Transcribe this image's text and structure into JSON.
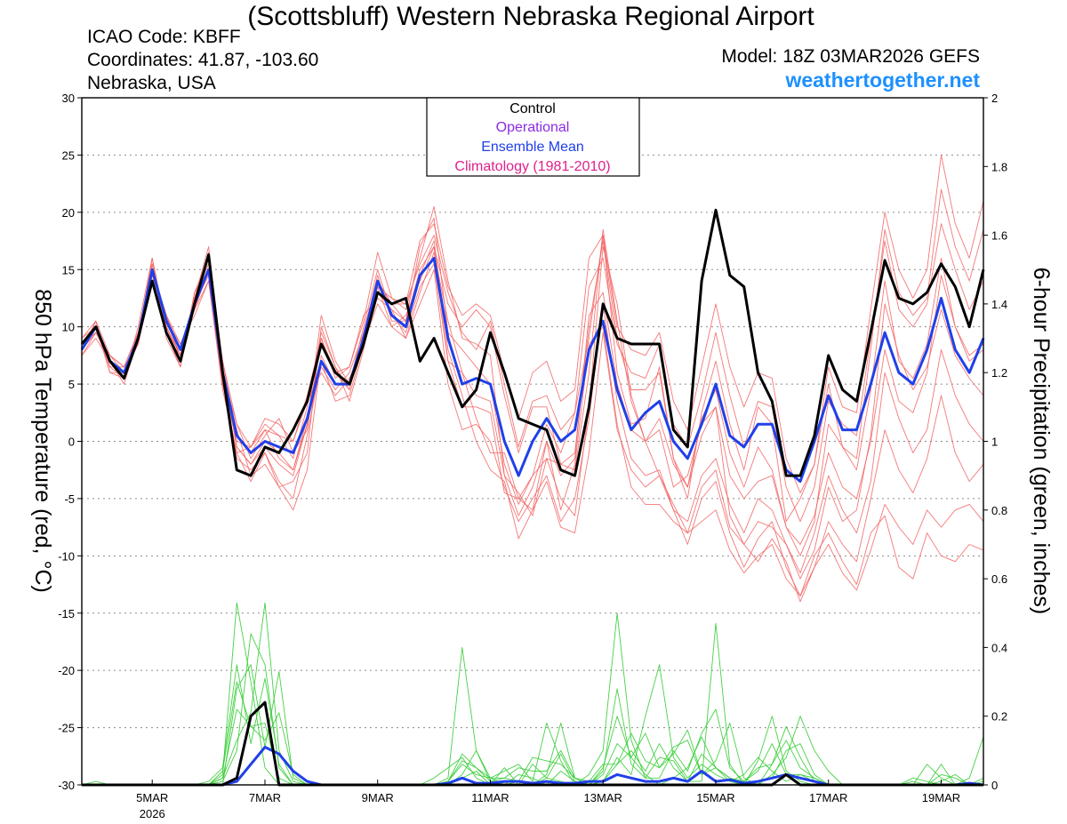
{
  "header": {
    "title": "(Scottsbluff) Western Nebraska Regional Airport",
    "icao": "ICAO Code: KBFF",
    "coordinates": "Coordinates: 41.87, -103.60",
    "region": "Nebraska, USA",
    "model": "Model: 18Z 03MAR2026 GEFS",
    "site": "weathertogether.net"
  },
  "colors": {
    "members": "#f26060",
    "control": "#000000",
    "mean": "#2040e8",
    "precip": "#33cc33",
    "operational": "#8a2be2",
    "climatology": "#e0208c",
    "site": "#1e90ff"
  },
  "chart_data": {
    "type": "line",
    "title": "(Scottsbluff) Western Nebraska Regional Airport",
    "ylabel": "850 hPa Temperature (red, °C)",
    "y2label": "6-hour Precipitation (green, inches)",
    "ylim": [
      -30,
      30
    ],
    "yticks": [
      30,
      25,
      20,
      15,
      10,
      5,
      0,
      -5,
      -10,
      -15,
      -20,
      -25,
      -30
    ],
    "y2lim": [
      0,
      2
    ],
    "y2ticks": [
      "2",
      "1.8",
      "1.6",
      "1.4",
      "1.2",
      "1",
      "0.8",
      "0.6",
      "0.4",
      "0.2",
      "0"
    ],
    "x_start_day": 3.75,
    "x_end_day": 19.75,
    "step_days": 0.25,
    "xticks": [
      {
        "day": 5,
        "label": "5MAR",
        "sublabel": "2026"
      },
      {
        "day": 7,
        "label": "7MAR",
        "sublabel": ""
      },
      {
        "day": 9,
        "label": "9MAR",
        "sublabel": ""
      },
      {
        "day": 11,
        "label": "11MAR",
        "sublabel": ""
      },
      {
        "day": 13,
        "label": "13MAR",
        "sublabel": ""
      },
      {
        "day": 15,
        "label": "15MAR",
        "sublabel": ""
      },
      {
        "day": 17,
        "label": "17MAR",
        "sublabel": ""
      },
      {
        "day": 19,
        "label": "19MAR",
        "sublabel": ""
      }
    ],
    "legend": {
      "position": "top-center",
      "entries": [
        {
          "label": "Control",
          "color": "#000000"
        },
        {
          "label": "Operational",
          "color": "#8a2be2"
        },
        {
          "label": "Ensemble Mean",
          "color": "#2040e8"
        },
        {
          "label": "Climatology (1981-2010)",
          "color": "#e0208c"
        }
      ]
    },
    "control_temp": [
      8.5,
      10,
      7,
      5.5,
      9,
      14,
      9.5,
      7,
      12,
      16.3,
      6,
      -2.5,
      -3,
      -0.5,
      -1,
      1,
      3.5,
      8.5,
      6,
      5,
      8.5,
      13,
      12,
      12.5,
      7,
      9,
      6,
      3,
      4.5,
      9.5,
      6,
      2,
      1.5,
      1,
      -2.5,
      -3,
      3,
      12,
      9,
      8.5,
      8.5,
      8.5,
      1,
      -0.5,
      14,
      20.2,
      14.5,
      13.5,
      6,
      3.5,
      -3,
      -3,
      0.5,
      7.5,
      4.5,
      3.5,
      9.5,
      15.8,
      12.5,
      12,
      13,
      15.5,
      13.5,
      10,
      15
    ],
    "mean_temp": [
      8,
      10,
      7,
      6,
      9,
      15,
      10.5,
      8,
      12,
      15,
      6,
      0.5,
      -1,
      0,
      -0.5,
      -1,
      2,
      7,
      5,
      5,
      9,
      14,
      11,
      10,
      14.5,
      16,
      9,
      5,
      5.5,
      5,
      0,
      -3,
      0,
      2,
      0,
      1,
      8,
      10.5,
      4.5,
      1,
      2.5,
      3.5,
      0,
      -1.5,
      1.5,
      5,
      0.5,
      -0.5,
      1.5,
      1.5,
      -2.5,
      -3.5,
      0,
      4,
      1,
      1,
      5,
      9.5,
      6,
      5,
      8,
      12.5,
      8,
      6,
      9
    ],
    "member_temp": [
      [
        8,
        10.5,
        6.5,
        5.5,
        9.5,
        15.5,
        10,
        7.5,
        12.5,
        16,
        6,
        -1.5,
        -2.5,
        -1,
        -4,
        -3.5,
        -1,
        10,
        6.5,
        4.5,
        9.5,
        14,
        12,
        10.5,
        17,
        19.5,
        9.5,
        8,
        6.5,
        5,
        -2,
        -5.5,
        -3,
        1.5,
        -1,
        2.5,
        9,
        18,
        6,
        1.5,
        2,
        6.5,
        -1.5,
        -5,
        2.5,
        7,
        1.5,
        -2.5,
        3,
        1.5,
        -7,
        -5,
        -2,
        5,
        -0.5,
        -2.5,
        4.5,
        14,
        7,
        5.5,
        8.5,
        16,
        10,
        7.5,
        8.5
      ],
      [
        7.5,
        9.5,
        7.5,
        6.5,
        8.5,
        14.5,
        11,
        8,
        11.5,
        14,
        5,
        0,
        -0.5,
        2,
        1.5,
        0,
        3.5,
        6,
        4,
        5.5,
        8.5,
        13.5,
        10,
        11,
        14,
        17,
        7,
        3,
        3,
        2.5,
        -4.5,
        -5,
        -6,
        0,
        -6,
        -2,
        8.5,
        10,
        1.5,
        -4,
        -5.5,
        -5.5,
        -7,
        -8,
        -7,
        -6,
        -9.5,
        -11.5,
        -10,
        -9,
        -12,
        -13.5,
        -10,
        -8,
        -10.5,
        -12.5,
        -8,
        -6.5,
        -11,
        -12,
        -8,
        -10,
        -10.5,
        -9,
        -9.5
      ],
      [
        9,
        10,
        6,
        5.5,
        10,
        16,
        9.5,
        6.5,
        13,
        15,
        7,
        1.5,
        -1.5,
        0.5,
        2,
        -1,
        1,
        9,
        5.5,
        6.5,
        11,
        12.5,
        11.5,
        9,
        13,
        16.5,
        10.5,
        6,
        2,
        -1,
        -1,
        -5,
        -3,
        -1.5,
        -5,
        -6.5,
        3,
        17,
        12,
        4,
        0,
        -3,
        -5.5,
        -8,
        -4,
        -2.5,
        -7.5,
        -9,
        -10.5,
        -8.5,
        -10.5,
        -14,
        -11,
        -9,
        -11.5,
        -13,
        -9.5,
        -5.5,
        -7.5,
        -9,
        -6,
        -7.5,
        -6,
        -5.5,
        -7
      ],
      [
        8.5,
        9.5,
        7,
        6,
        9,
        14.5,
        10.5,
        7.5,
        12.5,
        15.5,
        6.5,
        -0.5,
        -2,
        0,
        -1,
        -2.5,
        2,
        8.5,
        6,
        4.5,
        9,
        13.5,
        12.5,
        11.5,
        16,
        20.5,
        14,
        9,
        8.5,
        7.5,
        -3,
        -4.5,
        -6.5,
        -1.5,
        -2,
        -2.5,
        6,
        18.5,
        10.5,
        3.5,
        0,
        1,
        -4,
        -3,
        1.5,
        3,
        -6.5,
        -9,
        -7,
        -7.5,
        -9,
        -12,
        -9.5,
        -4,
        -7,
        -6,
        0.5,
        12,
        7.5,
        4.5,
        6.5,
        11.5,
        7.5,
        5.5,
        4
      ],
      [
        8,
        10.5,
        7.5,
        6,
        8.5,
        15,
        11,
        8.5,
        11,
        14,
        4.5,
        -1,
        -0.5,
        1,
        -1.5,
        -2.5,
        1.5,
        6.5,
        4.5,
        6,
        9.5,
        14.5,
        10.5,
        10.5,
        15,
        17,
        12,
        10,
        11.5,
        10,
        4,
        -1,
        3,
        3,
        -2,
        -1,
        10,
        17.5,
        9,
        4.5,
        4.5,
        6,
        -1.5,
        -4,
        2,
        4.5,
        -1,
        -4,
        -0.5,
        -2.5,
        -7.5,
        -10,
        -7,
        1.5,
        -0.5,
        -1.5,
        8,
        18.5,
        13,
        11,
        12.5,
        22,
        17,
        14,
        18.5
      ],
      [
        8.5,
        10,
        6.5,
        6.5,
        9.5,
        14,
        10,
        7,
        12,
        16.5,
        5.5,
        1,
        -3,
        -2,
        -4,
        -6,
        -2.5,
        7.5,
        5,
        5,
        10,
        15,
        11,
        9.5,
        13.5,
        15.5,
        7,
        6,
        4,
        3.5,
        -3,
        -6.5,
        -4,
        0,
        -3,
        -1.5,
        11,
        13,
        5,
        1,
        0,
        2,
        -2,
        -4,
        0.5,
        3,
        -3,
        -5,
        -3.5,
        -3,
        -7.5,
        -9,
        -6.5,
        -1,
        -4,
        -5,
        0,
        8,
        3.5,
        2.5,
        6,
        14.5,
        10,
        7,
        8
      ],
      [
        7.5,
        9,
        7,
        5,
        9,
        15.5,
        9,
        6.5,
        13,
        16,
        7,
        0.5,
        -1,
        1,
        0.5,
        -1.5,
        3,
        9.5,
        6.5,
        3.5,
        8,
        14,
        12,
        12,
        15.5,
        18,
        13,
        9.5,
        8,
        10.5,
        5,
        -0.5,
        3.5,
        4,
        1,
        2.5,
        13.5,
        16,
        8.5,
        6,
        5.5,
        8.5,
        1.5,
        -0.5,
        4,
        9.5,
        4,
        -0.5,
        3.5,
        3,
        -4,
        -7,
        -4,
        3.5,
        1.5,
        0.5,
        9,
        17.5,
        11.5,
        10,
        12,
        19,
        15,
        11.5,
        14
      ],
      [
        9,
        10.5,
        6,
        6,
        8.5,
        14,
        10.5,
        8.5,
        11.5,
        15,
        5,
        -1,
        -3.5,
        -1,
        -3.5,
        -5,
        0.5,
        7,
        3.5,
        4,
        8.5,
        12,
        10,
        9,
        12,
        15,
        5,
        1,
        1.5,
        0,
        -4,
        -7,
        -5,
        -3,
        -7,
        -5,
        2,
        12,
        3.5,
        -1.5,
        -3,
        -2.5,
        -6,
        -9,
        -5,
        -3.5,
        -8,
        -11,
        -8.5,
        -7,
        -11,
        -13.5,
        -11,
        -7,
        -9,
        -10.5,
        -5,
        1,
        -2.5,
        -4.5,
        -1.5,
        4,
        -1,
        -3.5,
        -2
      ],
      [
        8,
        9.5,
        7.5,
        6.5,
        9.5,
        15,
        11,
        7,
        12,
        14.5,
        6,
        1.5,
        -0.5,
        1.5,
        0.5,
        0,
        4,
        9,
        6,
        6.5,
        10.5,
        16.5,
        12.5,
        12,
        17.5,
        19,
        13.5,
        11,
        12,
        11,
        6,
        2,
        6,
        7,
        3.5,
        4.5,
        16,
        18,
        10,
        8,
        7.5,
        9.5,
        3.5,
        1,
        6.5,
        12,
        6.5,
        3,
        6,
        5.5,
        -1.5,
        -4.5,
        -2,
        6.5,
        3,
        2.5,
        11.5,
        20,
        15,
        12.5,
        15,
        25,
        19,
        16,
        21
      ],
      [
        8.5,
        10,
        7,
        5.5,
        9,
        16,
        10,
        7.5,
        12.5,
        17,
        6.5,
        -0.5,
        -2,
        -0.5,
        -2,
        -3,
        1.5,
        11,
        7,
        5,
        9,
        13,
        11.5,
        10.5,
        14.5,
        17.5,
        8,
        4,
        0,
        -2.5,
        -3.5,
        -8.5,
        -6,
        -3.5,
        -7.5,
        -8,
        -1,
        9.5,
        1,
        -2.5,
        -4,
        -3,
        -6,
        -7,
        -3,
        -1.5,
        -5.5,
        -8,
        -5,
        -6,
        -9,
        -11.5,
        -8,
        -3,
        -6,
        -8,
        -3.5,
        6,
        2,
        -1,
        1,
        8,
        4,
        1.5,
        0
      ]
    ],
    "control_precip": [
      0,
      0,
      0,
      0,
      0,
      0,
      0,
      0,
      0,
      0,
      0,
      0.02,
      0.2,
      0.24,
      0,
      0,
      0,
      0,
      0,
      0,
      0,
      0,
      0,
      0,
      0,
      0,
      0,
      0,
      0,
      0,
      0,
      0,
      0,
      0,
      0,
      0,
      0,
      0,
      0,
      0,
      0,
      0,
      0,
      0,
      0,
      0,
      0,
      0,
      0,
      0,
      0.03,
      0,
      0,
      0,
      0,
      0,
      0,
      0,
      0,
      0,
      0,
      0,
      0,
      0,
      0
    ],
    "mean_precip": [
      0,
      0,
      0,
      0,
      0,
      0,
      0,
      0,
      0,
      0,
      0,
      0.01,
      0.06,
      0.11,
      0.09,
      0.04,
      0.01,
      0,
      0,
      0,
      0,
      0,
      0,
      0,
      0,
      0,
      0.005,
      0.02,
      0.005,
      0.005,
      0.01,
      0.01,
      0.005,
      0.01,
      0.005,
      0.005,
      0.01,
      0.01,
      0.03,
      0.02,
      0.01,
      0.01,
      0.02,
      0.01,
      0.04,
      0.01,
      0.015,
      0.005,
      0.01,
      0.02,
      0.03,
      0.02,
      0.01,
      0,
      0,
      0,
      0,
      0,
      0,
      0,
      0,
      0,
      0,
      0.005,
      0
    ],
    "member_precip": [
      [
        0,
        0.01,
        0,
        0,
        0,
        0,
        0,
        0,
        0,
        0,
        0.03,
        0.53,
        0.3,
        0.05,
        0,
        0,
        0,
        0,
        0,
        0,
        0,
        0,
        0,
        0,
        0,
        0.02,
        0.05,
        0.08,
        0.02,
        0,
        0.05,
        0,
        0,
        0.02,
        0.09,
        0.01,
        0,
        0.05,
        0.2,
        0.08,
        0.03,
        0,
        0.02,
        0.05,
        0.14,
        0.05,
        0.02,
        0,
        0,
        0.03,
        0.08,
        0.2,
        0.1,
        0.04,
        0,
        0,
        0,
        0,
        0,
        0.01,
        0,
        0.03,
        0.02,
        0,
        0.01
      ],
      [
        0,
        0,
        0,
        0,
        0,
        0,
        0,
        0,
        0,
        0,
        0.01,
        0.1,
        0.44,
        0.35,
        0.05,
        0,
        0,
        0,
        0,
        0,
        0,
        0,
        0,
        0,
        0,
        0,
        0.02,
        0.4,
        0.1,
        0.01,
        0,
        0,
        0.06,
        0.02,
        0.01,
        0,
        0.03,
        0.1,
        0.5,
        0.13,
        0.02,
        0.08,
        0.07,
        0.01,
        0.01,
        0.47,
        0.06,
        0,
        0.01,
        0.02,
        0.1,
        0.12,
        0.03,
        0,
        0,
        0,
        0,
        0,
        0,
        0,
        0.06,
        0.02,
        0,
        0.02,
        0.14
      ],
      [
        0,
        0,
        0,
        0,
        0,
        0,
        0,
        0,
        0,
        0,
        0,
        0.28,
        0.35,
        0.11,
        0.33,
        0.02,
        0,
        0,
        0,
        0,
        0,
        0,
        0,
        0,
        0,
        0,
        0.01,
        0.07,
        0.05,
        0.02,
        0.04,
        0.06,
        0.01,
        0.18,
        0.07,
        0,
        0,
        0.01,
        0.08,
        0.03,
        0.2,
        0.35,
        0.08,
        0.02,
        0.06,
        0.03,
        0.01,
        0,
        0.07,
        0.2,
        0.04,
        0.01,
        0,
        0,
        0,
        0,
        0,
        0,
        0,
        0,
        0,
        0.06,
        0,
        0,
        0
      ],
      [
        0,
        0,
        0,
        0,
        0,
        0,
        0,
        0,
        0,
        0,
        0.02,
        0.13,
        0.21,
        0.53,
        0.1,
        0.01,
        0,
        0,
        0,
        0,
        0,
        0,
        0,
        0,
        0,
        0,
        0,
        0.03,
        0.1,
        0.02,
        0,
        0.01,
        0.08,
        0.07,
        0.06,
        0.02,
        0,
        0.03,
        0.12,
        0.08,
        0.15,
        0.05,
        0.11,
        0.13,
        0.03,
        0.07,
        0.18,
        0.02,
        0,
        0.06,
        0.13,
        0.05,
        0.02,
        0,
        0,
        0,
        0,
        0,
        0,
        0,
        0,
        0,
        0,
        0,
        0
      ],
      [
        0,
        0,
        0,
        0,
        0,
        0,
        0,
        0,
        0,
        0.01,
        0.05,
        0.35,
        0.12,
        0.31,
        0.06,
        0,
        0,
        0,
        0,
        0,
        0,
        0,
        0,
        0,
        0,
        0,
        0.01,
        0.09,
        0.05,
        0.01,
        0.02,
        0.01,
        0,
        0.03,
        0.18,
        0.02,
        0,
        0.04,
        0.28,
        0.06,
        0.02,
        0.02,
        0.1,
        0.04,
        0.15,
        0.22,
        0.05,
        0.01,
        0.05,
        0.06,
        0.17,
        0.08,
        0.01,
        0,
        0,
        0,
        0,
        0,
        0,
        0,
        0,
        0.01,
        0.03,
        0,
        0
      ],
      [
        0,
        0,
        0,
        0,
        0,
        0,
        0,
        0,
        0,
        0,
        0.02,
        0.22,
        0.17,
        0.18,
        0.02,
        0,
        0,
        0,
        0,
        0,
        0,
        0,
        0,
        0,
        0,
        0,
        0,
        0.02,
        0.04,
        0,
        0,
        0.03,
        0.02,
        0,
        0.04,
        0.01,
        0,
        0.01,
        0.06,
        0.15,
        0.07,
        0.05,
        0.09,
        0.16,
        0.03,
        0.05,
        0.02,
        0.01,
        0.04,
        0.12,
        0.03,
        0.03,
        0.01,
        0,
        0,
        0,
        0,
        0,
        0,
        0.02,
        0.01,
        0,
        0,
        0,
        0.02
      ],
      [
        0,
        0,
        0,
        0,
        0,
        0,
        0,
        0,
        0,
        0,
        0.04,
        0.3,
        0.17,
        0.13,
        0.21,
        0.03,
        0,
        0,
        0,
        0,
        0,
        0,
        0,
        0,
        0,
        0,
        0.01,
        0.06,
        0.03,
        0.02,
        0.02,
        0.05,
        0.04,
        0.04,
        0.1,
        0.02,
        0.01,
        0.06,
        0.06,
        0.1,
        0.04,
        0.12,
        0.05,
        0.01,
        0.09,
        0.05,
        0.01,
        0.03,
        0.08,
        0.04,
        0.01,
        0.03,
        0.02,
        0,
        0,
        0,
        0,
        0,
        0,
        0,
        0,
        0,
        0,
        0,
        0
      ]
    ]
  }
}
